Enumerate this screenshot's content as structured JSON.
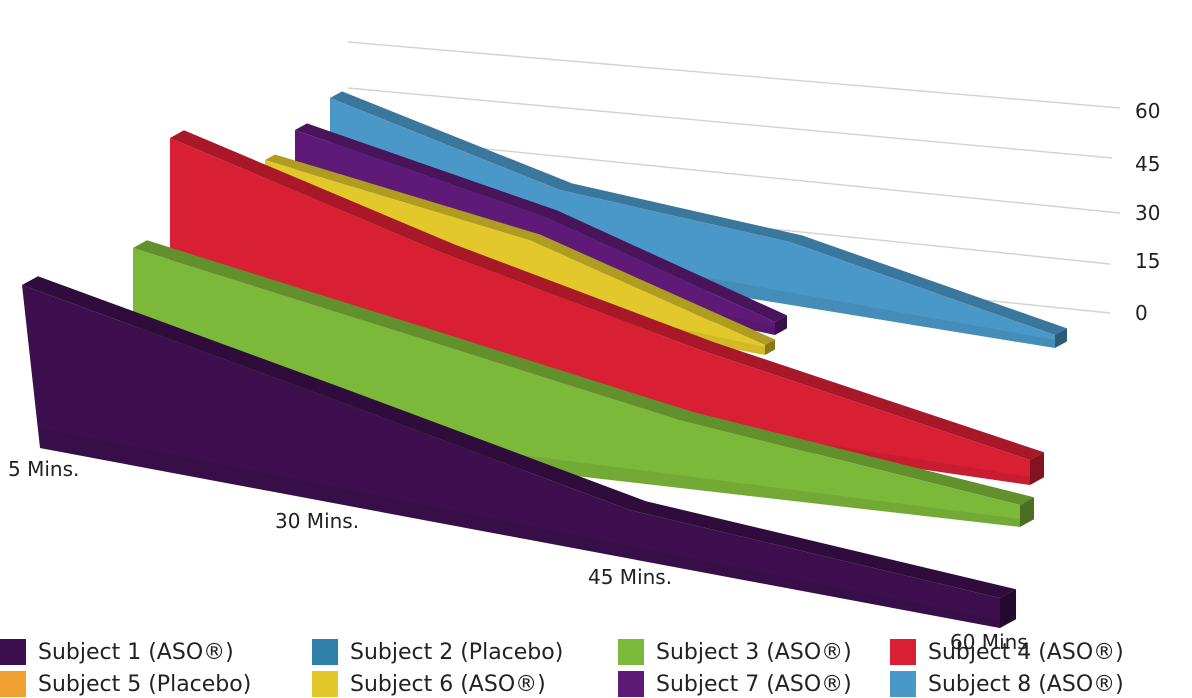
{
  "chart_data": {
    "type": "area",
    "three_d": true,
    "categories": [
      "5 Mins.",
      "30 Mins.",
      "45 Mins.",
      "60 Mins"
    ],
    "y_ticks": [
      "0",
      "15",
      "30",
      "45",
      "60"
    ],
    "ylim": [
      0,
      60
    ],
    "series": [
      {
        "name": "Subject 1 (ASO®)",
        "color": "#3d0f4e",
        "values": [
          60,
          40,
          22,
          8
        ]
      },
      {
        "name": "Subject 2 (Placebo)",
        "color": "#2f7fa8",
        "values": [
          null,
          null,
          null,
          null
        ]
      },
      {
        "name": "Subject 3 (ASO®)",
        "color": "#7cb83a",
        "values": [
          60,
          40,
          22,
          8
        ]
      },
      {
        "name": "Subject 4 (ASO®)",
        "color": "#d81f34",
        "values": [
          60,
          40,
          22,
          8
        ]
      },
      {
        "name": "Subject 5 (Placebo)",
        "color": "#f0a030",
        "values": [
          null,
          null,
          null,
          null
        ]
      },
      {
        "name": "Subject 6 (ASO®)",
        "color": "#e2c82a",
        "values": [
          60,
          40,
          22,
          8
        ]
      },
      {
        "name": "Subject 7 (ASO®)",
        "color": "#5e1a76",
        "values": [
          60,
          40,
          22,
          8
        ]
      },
      {
        "name": "Subject 8 (ASO®)",
        "color": "#4a98c8",
        "values": [
          60,
          40,
          22,
          8
        ]
      }
    ]
  }
}
